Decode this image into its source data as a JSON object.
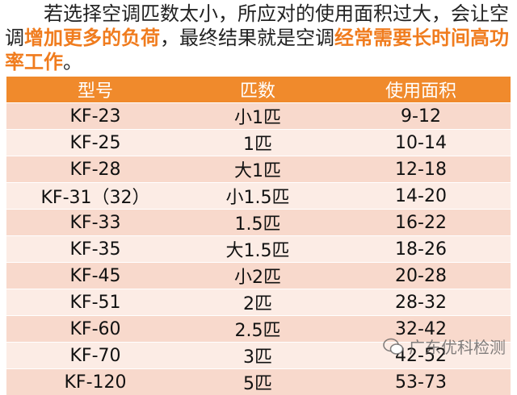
{
  "intro": {
    "segments": [
      {
        "text": "若选择空调匹数太小，所应对的使用面积过大，会让空调",
        "highlight": false
      },
      {
        "text": "增加更多的负荷",
        "highlight": true
      },
      {
        "text": "，最终结果就是空调",
        "highlight": false
      },
      {
        "text": "经常需要长时间高功率工作",
        "highlight": true
      },
      {
        "text": "。",
        "highlight": false
      }
    ]
  },
  "table": {
    "header": [
      "型号",
      "匹数",
      "使用面积"
    ],
    "rows": [
      [
        "KF-23",
        "小1匹",
        "9-12"
      ],
      [
        "KF-25",
        "1匹",
        "10-14"
      ],
      [
        "KF-28",
        "大1匹",
        "12-18"
      ],
      [
        "KF-31（32）",
        "小1.5匹",
        "14-20"
      ],
      [
        "KF-33",
        "1.5匹",
        "16-22"
      ],
      [
        "KF-35",
        "大1.5匹",
        "18-26"
      ],
      [
        "KF-45",
        "小2匹",
        "20-28"
      ],
      [
        "KF-51",
        "2匹",
        "28-32"
      ],
      [
        "KF-60",
        "2.5匹",
        "32-42"
      ],
      [
        "KF-70",
        "3匹",
        "42-52"
      ],
      [
        "KF-120",
        "5匹",
        "53-73"
      ]
    ]
  },
  "watermark": "广东优科检测"
}
